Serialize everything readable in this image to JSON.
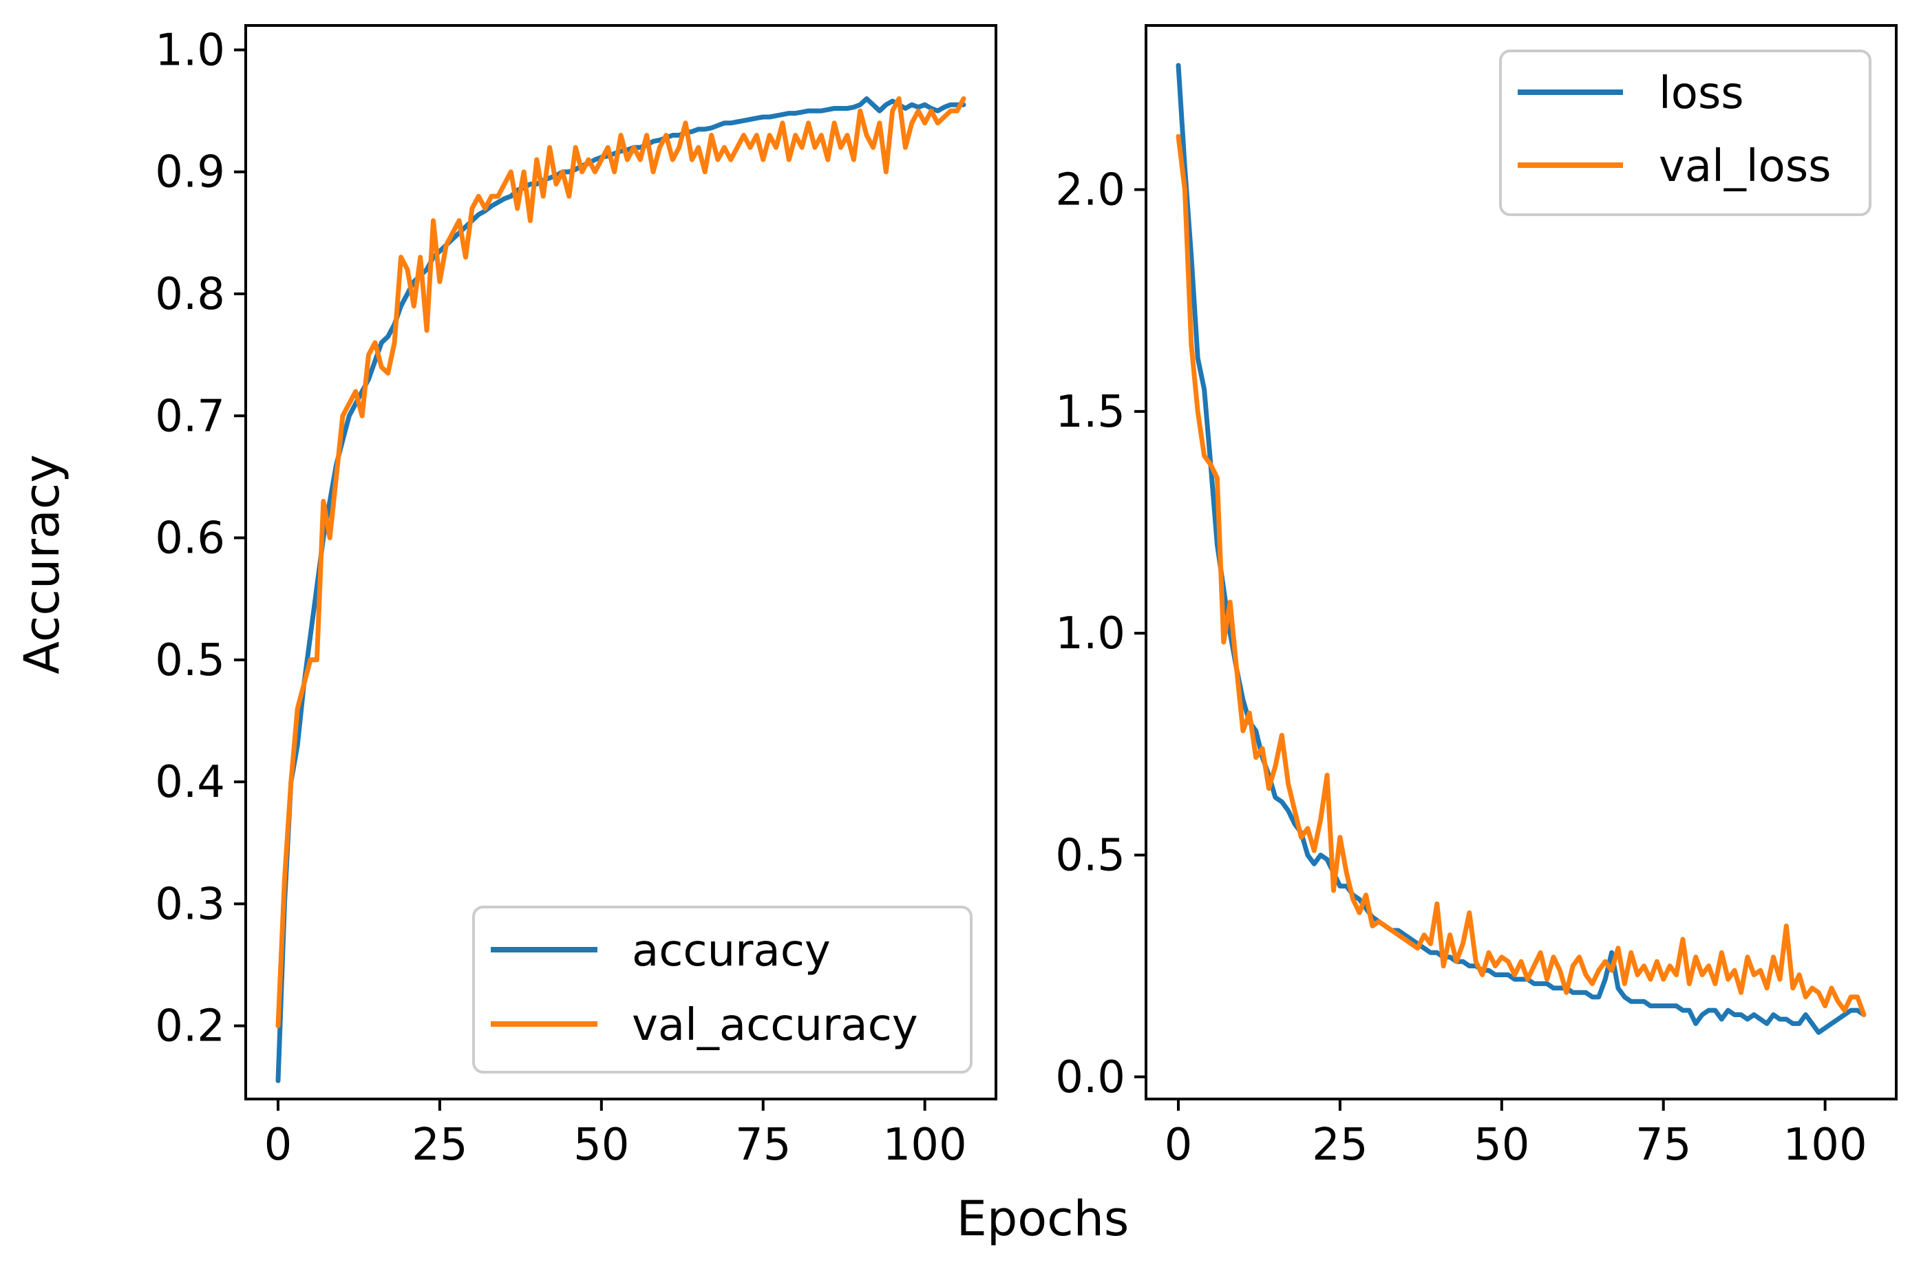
{
  "figure": {
    "xlabel": "Epochs",
    "ylabel": "Accuracy",
    "colors": {
      "blue": "#1f77b4",
      "orange": "#ff7f0e",
      "axes": "#000000",
      "legend_border": "#cccccc"
    }
  },
  "chart_data": [
    {
      "type": "line",
      "title": "",
      "xlabel": "",
      "ylabel": "Accuracy",
      "xlim": [
        -5,
        111
      ],
      "ylim": [
        0.14,
        1.02
      ],
      "xticks": [
        0,
        25,
        50,
        75,
        100
      ],
      "xtick_labels": [
        "0",
        "25",
        "50",
        "75",
        "100"
      ],
      "yticks": [
        0.2,
        0.3,
        0.4,
        0.5,
        0.6,
        0.7,
        0.8,
        0.9,
        1.0
      ],
      "ytick_labels": [
        "0.2",
        "0.3",
        "0.4",
        "0.5",
        "0.6",
        "0.7",
        "0.8",
        "0.9",
        "1.0"
      ],
      "grid": false,
      "legend": {
        "position": "lower-right",
        "entries": [
          "accuracy",
          "val_accuracy"
        ]
      },
      "x": [
        0,
        1,
        2,
        3,
        4,
        5,
        6,
        7,
        8,
        9,
        10,
        11,
        12,
        13,
        14,
        15,
        16,
        17,
        18,
        19,
        20,
        21,
        22,
        23,
        24,
        25,
        26,
        27,
        28,
        29,
        30,
        31,
        32,
        33,
        34,
        35,
        36,
        37,
        38,
        39,
        40,
        41,
        42,
        43,
        44,
        45,
        46,
        47,
        48,
        49,
        50,
        51,
        52,
        53,
        54,
        55,
        56,
        57,
        58,
        59,
        60,
        61,
        62,
        63,
        64,
        65,
        66,
        67,
        68,
        69,
        70,
        71,
        72,
        73,
        74,
        75,
        76,
        77,
        78,
        79,
        80,
        81,
        82,
        83,
        84,
        85,
        86,
        87,
        88,
        89,
        90,
        91,
        92,
        93,
        94,
        95,
        96,
        97,
        98,
        99,
        100,
        101,
        102,
        103,
        104,
        105,
        106
      ],
      "series": [
        {
          "name": "accuracy",
          "color": "#1f77b4",
          "values": [
            0.155,
            0.3,
            0.4,
            0.43,
            0.48,
            0.52,
            0.56,
            0.6,
            0.63,
            0.66,
            0.68,
            0.7,
            0.71,
            0.72,
            0.73,
            0.745,
            0.76,
            0.765,
            0.775,
            0.79,
            0.8,
            0.81,
            0.815,
            0.82,
            0.83,
            0.835,
            0.84,
            0.845,
            0.85,
            0.855,
            0.86,
            0.865,
            0.868,
            0.872,
            0.875,
            0.878,
            0.88,
            0.885,
            0.887,
            0.89,
            0.89,
            0.893,
            0.895,
            0.897,
            0.9,
            0.9,
            0.902,
            0.905,
            0.907,
            0.91,
            0.912,
            0.913,
            0.915,
            0.917,
            0.918,
            0.92,
            0.92,
            0.922,
            0.925,
            0.926,
            0.928,
            0.93,
            0.93,
            0.932,
            0.933,
            0.935,
            0.935,
            0.936,
            0.938,
            0.94,
            0.94,
            0.941,
            0.942,
            0.943,
            0.944,
            0.945,
            0.945,
            0.946,
            0.947,
            0.948,
            0.948,
            0.949,
            0.95,
            0.95,
            0.95,
            0.951,
            0.952,
            0.952,
            0.952,
            0.953,
            0.955,
            0.96,
            0.955,
            0.95,
            0.955,
            0.958,
            0.955,
            0.952,
            0.955,
            0.953,
            0.955,
            0.952,
            0.95,
            0.953,
            0.955,
            0.955,
            0.955
          ]
        },
        {
          "name": "val_accuracy",
          "color": "#ff7f0e",
          "values": [
            0.2,
            0.32,
            0.4,
            0.46,
            0.48,
            0.5,
            0.5,
            0.63,
            0.6,
            0.65,
            0.7,
            0.71,
            0.72,
            0.7,
            0.75,
            0.76,
            0.74,
            0.735,
            0.76,
            0.83,
            0.82,
            0.79,
            0.83,
            0.77,
            0.86,
            0.81,
            0.84,
            0.85,
            0.86,
            0.83,
            0.87,
            0.88,
            0.87,
            0.88,
            0.88,
            0.89,
            0.9,
            0.87,
            0.9,
            0.86,
            0.91,
            0.88,
            0.92,
            0.89,
            0.9,
            0.88,
            0.92,
            0.9,
            0.91,
            0.9,
            0.91,
            0.92,
            0.9,
            0.93,
            0.91,
            0.92,
            0.91,
            0.93,
            0.9,
            0.92,
            0.93,
            0.91,
            0.92,
            0.94,
            0.91,
            0.92,
            0.9,
            0.93,
            0.91,
            0.92,
            0.91,
            0.92,
            0.93,
            0.92,
            0.93,
            0.91,
            0.93,
            0.92,
            0.94,
            0.91,
            0.93,
            0.92,
            0.94,
            0.92,
            0.93,
            0.91,
            0.94,
            0.92,
            0.93,
            0.91,
            0.95,
            0.93,
            0.92,
            0.94,
            0.9,
            0.95,
            0.96,
            0.92,
            0.94,
            0.95,
            0.94,
            0.95,
            0.94,
            0.945,
            0.95,
            0.95,
            0.96
          ]
        }
      ]
    },
    {
      "type": "line",
      "title": "",
      "xlabel": "",
      "ylabel": "",
      "xlim": [
        -5,
        111
      ],
      "ylim": [
        -0.05,
        2.37
      ],
      "xticks": [
        0,
        25,
        50,
        75,
        100
      ],
      "xtick_labels": [
        "0",
        "25",
        "50",
        "75",
        "100"
      ],
      "yticks": [
        0.0,
        0.5,
        1.0,
        1.5,
        2.0
      ],
      "ytick_labels": [
        "0.0",
        "0.5",
        "1.0",
        "1.5",
        "2.0"
      ],
      "grid": false,
      "legend": {
        "position": "upper-right",
        "entries": [
          "loss",
          "val_loss"
        ]
      },
      "x": [
        0,
        1,
        2,
        3,
        4,
        5,
        6,
        7,
        8,
        9,
        10,
        11,
        12,
        13,
        14,
        15,
        16,
        17,
        18,
        19,
        20,
        21,
        22,
        23,
        24,
        25,
        26,
        27,
        28,
        29,
        30,
        31,
        32,
        33,
        34,
        35,
        36,
        37,
        38,
        39,
        40,
        41,
        42,
        43,
        44,
        45,
        46,
        47,
        48,
        49,
        50,
        51,
        52,
        53,
        54,
        55,
        56,
        57,
        58,
        59,
        60,
        61,
        62,
        63,
        64,
        65,
        66,
        67,
        68,
        69,
        70,
        71,
        72,
        73,
        74,
        75,
        76,
        77,
        78,
        79,
        80,
        81,
        82,
        83,
        84,
        85,
        86,
        87,
        88,
        89,
        90,
        91,
        92,
        93,
        94,
        95,
        96,
        97,
        98,
        99,
        100,
        101,
        102,
        103,
        104,
        105,
        106
      ],
      "series": [
        {
          "name": "loss",
          "color": "#1f77b4",
          "values": [
            2.28,
            2.05,
            1.85,
            1.62,
            1.55,
            1.38,
            1.2,
            1.1,
            1.0,
            0.92,
            0.85,
            0.8,
            0.78,
            0.72,
            0.68,
            0.63,
            0.62,
            0.6,
            0.57,
            0.55,
            0.5,
            0.48,
            0.5,
            0.49,
            0.46,
            0.43,
            0.43,
            0.41,
            0.4,
            0.38,
            0.36,
            0.35,
            0.34,
            0.33,
            0.33,
            0.32,
            0.31,
            0.3,
            0.29,
            0.28,
            0.28,
            0.27,
            0.27,
            0.26,
            0.26,
            0.25,
            0.25,
            0.24,
            0.24,
            0.23,
            0.23,
            0.23,
            0.22,
            0.22,
            0.22,
            0.21,
            0.21,
            0.21,
            0.2,
            0.2,
            0.2,
            0.19,
            0.19,
            0.19,
            0.18,
            0.18,
            0.22,
            0.28,
            0.2,
            0.18,
            0.17,
            0.17,
            0.17,
            0.16,
            0.16,
            0.16,
            0.16,
            0.16,
            0.15,
            0.15,
            0.12,
            0.14,
            0.15,
            0.15,
            0.13,
            0.15,
            0.14,
            0.14,
            0.13,
            0.14,
            0.13,
            0.12,
            0.14,
            0.13,
            0.13,
            0.12,
            0.12,
            0.14,
            0.12,
            0.1,
            0.11,
            0.12,
            0.13,
            0.14,
            0.15,
            0.15,
            0.14
          ]
        },
        {
          "name": "val_loss",
          "color": "#ff7f0e",
          "values": [
            2.12,
            2.0,
            1.65,
            1.5,
            1.4,
            1.38,
            1.35,
            0.98,
            1.07,
            0.92,
            0.78,
            0.82,
            0.72,
            0.74,
            0.65,
            0.7,
            0.77,
            0.66,
            0.6,
            0.54,
            0.56,
            0.51,
            0.58,
            0.68,
            0.42,
            0.54,
            0.46,
            0.4,
            0.37,
            0.41,
            0.34,
            0.35,
            0.34,
            0.33,
            0.32,
            0.31,
            0.3,
            0.29,
            0.32,
            0.3,
            0.39,
            0.25,
            0.32,
            0.26,
            0.3,
            0.37,
            0.26,
            0.23,
            0.28,
            0.25,
            0.27,
            0.26,
            0.23,
            0.26,
            0.22,
            0.25,
            0.28,
            0.22,
            0.27,
            0.24,
            0.19,
            0.25,
            0.27,
            0.23,
            0.21,
            0.24,
            0.26,
            0.24,
            0.29,
            0.21,
            0.28,
            0.23,
            0.25,
            0.22,
            0.26,
            0.22,
            0.25,
            0.23,
            0.31,
            0.21,
            0.27,
            0.23,
            0.25,
            0.21,
            0.28,
            0.22,
            0.24,
            0.19,
            0.27,
            0.23,
            0.24,
            0.2,
            0.27,
            0.22,
            0.34,
            0.2,
            0.23,
            0.18,
            0.2,
            0.19,
            0.16,
            0.2,
            0.17,
            0.15,
            0.18,
            0.18,
            0.14
          ]
        }
      ]
    }
  ]
}
